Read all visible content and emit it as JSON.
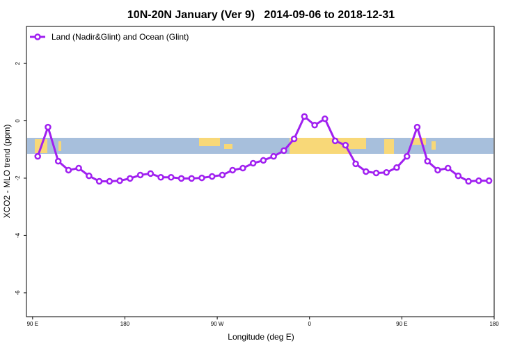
{
  "chart_data": {
    "type": "line",
    "title": "10N-20N January (Ver 9)   2014-09-06 to 2018-12-31",
    "xlabel": "Longitude (deg E)",
    "ylabel": "XCO2 - MLO trend (ppm)",
    "x": [
      95,
      105,
      115,
      125,
      135,
      145,
      155,
      165,
      175,
      185,
      195,
      205,
      215,
      225,
      235,
      245,
      255,
      265,
      275,
      285,
      295,
      305,
      315,
      325,
      335,
      345,
      355,
      365,
      375,
      385,
      395,
      405,
      415,
      425,
      435,
      445,
      455,
      465,
      475,
      485,
      495,
      505,
      515,
      525,
      535
    ],
    "series": [
      {
        "name": "Land (Nadir&Glint) and Ocean (Glint)",
        "color": "#a020f0",
        "values": [
          -1.24,
          -0.22,
          -1.41,
          -1.72,
          -1.65,
          -1.92,
          -2.11,
          -2.11,
          -2.09,
          -2.01,
          -1.89,
          -1.84,
          -1.97,
          -1.97,
          -2.01,
          -2.01,
          -1.99,
          -1.94,
          -1.89,
          -1.72,
          -1.65,
          -1.48,
          -1.38,
          -1.24,
          -1.04,
          -0.63,
          0.15,
          -0.15,
          0.07,
          -0.7,
          -0.85,
          -1.5,
          -1.77,
          -1.82,
          -1.8,
          -1.63,
          -1.24,
          -0.22,
          -1.41,
          -1.72,
          -1.65,
          -1.92,
          -2.11,
          -2.09,
          -2.09
        ]
      }
    ],
    "xlim": [
      84,
      540
    ],
    "ylim": [
      -6.83,
      3.29
    ],
    "xticks": [
      {
        "value": 90,
        "label": "90 E"
      },
      180,
      {
        "value": 270,
        "label": "90 W"
      },
      {
        "value": 360,
        "label": "0"
      },
      {
        "value": 450,
        "label": "90 E"
      },
      {
        "value": 540,
        "label": "180"
      }
    ],
    "yticks": [
      -6,
      -4,
      -2,
      0,
      2
    ],
    "legend": "top-left"
  }
}
